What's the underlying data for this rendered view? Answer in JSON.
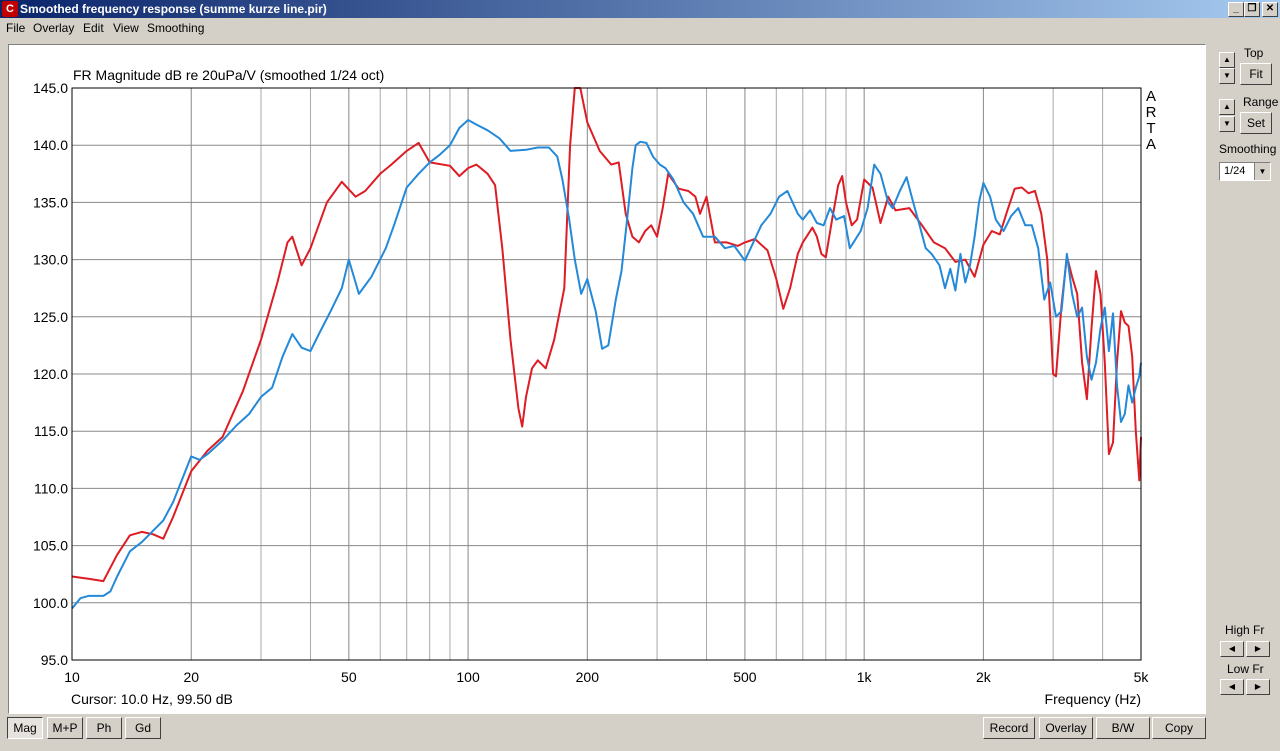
{
  "window": {
    "title": "Smoothed frequency response (summe kurze line.pir)",
    "icon": "C"
  },
  "menu": [
    "File",
    "Overlay",
    "Edit",
    "View",
    "Smoothing"
  ],
  "right_panel": {
    "top_label": "Top",
    "fit_label": "Fit",
    "range_label": "Range",
    "set_label": "Set",
    "smoothing_label": "Smoothing",
    "smoothing_value": "1/24",
    "high_fr_label": "High Fr",
    "low_fr_label": "Low Fr"
  },
  "bottom_left_buttons": [
    "Mag",
    "M+P",
    "Ph",
    "Gd"
  ],
  "bottom_right_buttons": [
    "Record",
    "Overlay",
    "B/W",
    "Copy"
  ],
  "chart_data": {
    "type": "line",
    "title": "FR Magnitude dB re 20uPa/V (smoothed 1/24 oct)",
    "xlabel": "Frequency (Hz)",
    "ylabel": "",
    "xscale": "log",
    "xlim": [
      10,
      5000
    ],
    "ylim": [
      95,
      145
    ],
    "x_ticks": [
      10,
      20,
      50,
      100,
      200,
      500,
      1000,
      2000,
      5000
    ],
    "x_tick_labels": [
      "10",
      "20",
      "50",
      "100",
      "200",
      "500",
      "1k",
      "2k",
      "5k"
    ],
    "y_ticks": [
      95,
      100,
      105,
      110,
      115,
      120,
      125,
      130,
      135,
      140,
      145
    ],
    "y_tick_labels": [
      "95.0",
      "100.0",
      "105.0",
      "110.0",
      "115.0",
      "120.0",
      "125.0",
      "130.0",
      "135.0",
      "140.0",
      "145.0"
    ],
    "grid": true,
    "watermark": "ARTA",
    "cursor_text": "Cursor: 10.0 Hz, 99.50 dB",
    "series": [
      {
        "color": "#dd1c24",
        "points": [
          [
            10,
            102.3
          ],
          [
            11,
            102.1
          ],
          [
            12,
            101.9
          ],
          [
            13,
            104.2
          ],
          [
            14,
            105.9
          ],
          [
            15,
            106.2
          ],
          [
            16,
            106.0
          ],
          [
            17,
            105.6
          ],
          [
            18,
            107.5
          ],
          [
            20,
            111.5
          ],
          [
            22,
            113.3
          ],
          [
            24,
            114.5
          ],
          [
            27,
            118.5
          ],
          [
            30,
            123
          ],
          [
            33,
            128
          ],
          [
            35,
            131.5
          ],
          [
            36,
            132
          ],
          [
            38,
            129.5
          ],
          [
            40,
            131
          ],
          [
            44,
            135
          ],
          [
            48,
            136.8
          ],
          [
            52,
            135.5
          ],
          [
            55,
            136
          ],
          [
            60,
            137.5
          ],
          [
            64,
            138.3
          ],
          [
            70,
            139.5
          ],
          [
            75,
            140.2
          ],
          [
            80,
            138.5
          ],
          [
            90,
            138.2
          ],
          [
            95,
            137.3
          ],
          [
            100,
            138
          ],
          [
            105,
            138.3
          ],
          [
            112,
            137.5
          ],
          [
            117,
            136.5
          ],
          [
            122,
            131
          ],
          [
            128,
            123
          ],
          [
            134,
            117
          ],
          [
            137,
            115.4
          ],
          [
            140,
            118
          ],
          [
            145,
            120.5
          ],
          [
            150,
            121.2
          ],
          [
            157,
            120.5
          ],
          [
            165,
            123
          ],
          [
            175,
            127.5
          ],
          [
            181,
            140
          ],
          [
            186,
            145
          ],
          [
            192,
            145
          ],
          [
            200,
            142
          ],
          [
            215,
            139.5
          ],
          [
            230,
            138.3
          ],
          [
            240,
            138.5
          ],
          [
            250,
            134
          ],
          [
            260,
            132
          ],
          [
            270,
            131.5
          ],
          [
            280,
            132.5
          ],
          [
            290,
            133
          ],
          [
            300,
            132
          ],
          [
            310,
            134.5
          ],
          [
            320,
            137.5
          ],
          [
            340,
            136.2
          ],
          [
            360,
            136
          ],
          [
            375,
            135.5
          ],
          [
            385,
            134
          ],
          [
            400,
            135.5
          ],
          [
            420,
            131.5
          ],
          [
            450,
            131.5
          ],
          [
            480,
            131.2
          ],
          [
            500,
            131.5
          ],
          [
            530,
            131.8
          ],
          [
            570,
            130.8
          ],
          [
            600,
            128.3
          ],
          [
            625,
            125.7
          ],
          [
            650,
            127.5
          ],
          [
            680,
            130.5
          ],
          [
            700,
            131.5
          ],
          [
            740,
            132.8
          ],
          [
            760,
            132
          ],
          [
            780,
            130.5
          ],
          [
            800,
            130.2
          ],
          [
            830,
            133.5
          ],
          [
            860,
            136.5
          ],
          [
            880,
            137.3
          ],
          [
            900,
            135
          ],
          [
            930,
            133
          ],
          [
            960,
            133.5
          ],
          [
            1000,
            137
          ],
          [
            1050,
            136.3
          ],
          [
            1100,
            133.2
          ],
          [
            1150,
            135.5
          ],
          [
            1200,
            134.3
          ],
          [
            1300,
            134.5
          ],
          [
            1400,
            133
          ],
          [
            1500,
            131.5
          ],
          [
            1600,
            131
          ],
          [
            1700,
            129.8
          ],
          [
            1800,
            130
          ],
          [
            1900,
            128.5
          ],
          [
            2000,
            131.3
          ],
          [
            2100,
            132.5
          ],
          [
            2200,
            132.2
          ],
          [
            2300,
            134.3
          ],
          [
            2400,
            136.2
          ],
          [
            2500,
            136.3
          ],
          [
            2600,
            135.8
          ],
          [
            2700,
            136
          ],
          [
            2800,
            134
          ],
          [
            2900,
            130
          ],
          [
            3000,
            120
          ],
          [
            3050,
            119.8
          ],
          [
            3150,
            126
          ],
          [
            3250,
            130.3
          ],
          [
            3350,
            128.5
          ],
          [
            3450,
            127
          ],
          [
            3550,
            121
          ],
          [
            3650,
            117.8
          ],
          [
            3750,
            124
          ],
          [
            3850,
            129
          ],
          [
            3950,
            127
          ],
          [
            4050,
            121
          ],
          [
            4150,
            113
          ],
          [
            4250,
            114
          ],
          [
            4350,
            121
          ],
          [
            4450,
            125.5
          ],
          [
            4550,
            124.5
          ],
          [
            4650,
            124.2
          ],
          [
            4750,
            121.5
          ],
          [
            4850,
            115
          ],
          [
            4950,
            110.7
          ],
          [
            5000,
            114.5
          ]
        ]
      },
      {
        "color": "#2389d8",
        "points": [
          [
            10,
            99.5
          ],
          [
            10.5,
            100.4
          ],
          [
            11,
            100.6
          ],
          [
            12,
            100.6
          ],
          [
            12.5,
            101
          ],
          [
            13,
            102.3
          ],
          [
            14,
            104.5
          ],
          [
            15,
            105.3
          ],
          [
            17,
            107.2
          ],
          [
            18,
            108.8
          ],
          [
            20,
            112.8
          ],
          [
            21,
            112.5
          ],
          [
            22,
            113
          ],
          [
            24,
            114.2
          ],
          [
            26,
            115.5
          ],
          [
            28,
            116.5
          ],
          [
            30,
            118
          ],
          [
            32,
            118.8
          ],
          [
            34,
            121.5
          ],
          [
            36,
            123.5
          ],
          [
            38,
            122.3
          ],
          [
            40,
            122
          ],
          [
            42,
            123.5
          ],
          [
            45,
            125.5
          ],
          [
            48,
            127.5
          ],
          [
            50,
            130
          ],
          [
            53,
            127
          ],
          [
            57,
            128.5
          ],
          [
            62,
            131
          ],
          [
            65,
            133
          ],
          [
            70,
            136.3
          ],
          [
            75,
            137.5
          ],
          [
            80,
            138.5
          ],
          [
            85,
            139.2
          ],
          [
            90,
            140
          ],
          [
            95,
            141.5
          ],
          [
            100,
            142.2
          ],
          [
            105,
            141.8
          ],
          [
            112,
            141.3
          ],
          [
            120,
            140.6
          ],
          [
            128,
            139.5
          ],
          [
            140,
            139.6
          ],
          [
            150,
            139.8
          ],
          [
            160,
            139.8
          ],
          [
            168,
            139
          ],
          [
            173,
            137
          ],
          [
            180,
            133.5
          ],
          [
            186,
            130
          ],
          [
            193,
            127
          ],
          [
            200,
            128.3
          ],
          [
            210,
            125.5
          ],
          [
            218,
            122.2
          ],
          [
            226,
            122.5
          ],
          [
            236,
            126.5
          ],
          [
            244,
            129
          ],
          [
            252,
            133.5
          ],
          [
            260,
            138
          ],
          [
            265,
            140
          ],
          [
            272,
            140.3
          ],
          [
            282,
            140.2
          ],
          [
            293,
            139
          ],
          [
            305,
            138.3
          ],
          [
            315,
            138
          ],
          [
            330,
            137
          ],
          [
            350,
            135
          ],
          [
            370,
            134
          ],
          [
            392,
            132
          ],
          [
            420,
            132
          ],
          [
            445,
            131
          ],
          [
            470,
            131.2
          ],
          [
            500,
            129.9
          ],
          [
            520,
            131.2
          ],
          [
            550,
            133
          ],
          [
            580,
            134
          ],
          [
            610,
            135.5
          ],
          [
            640,
            136
          ],
          [
            680,
            134
          ],
          [
            700,
            133.5
          ],
          [
            730,
            134.3
          ],
          [
            760,
            133.2
          ],
          [
            790,
            133
          ],
          [
            820,
            134.5
          ],
          [
            850,
            133.5
          ],
          [
            890,
            133.8
          ],
          [
            920,
            131
          ],
          [
            940,
            131.5
          ],
          [
            980,
            132.5
          ],
          [
            1020,
            134.5
          ],
          [
            1060,
            138.3
          ],
          [
            1100,
            137.5
          ],
          [
            1150,
            135
          ],
          [
            1180,
            134.5
          ],
          [
            1230,
            136
          ],
          [
            1280,
            137.2
          ],
          [
            1330,
            135
          ],
          [
            1380,
            133
          ],
          [
            1430,
            131
          ],
          [
            1480,
            130.5
          ],
          [
            1550,
            129.5
          ],
          [
            1600,
            127.5
          ],
          [
            1650,
            129.2
          ],
          [
            1700,
            127.3
          ],
          [
            1750,
            130.5
          ],
          [
            1800,
            128
          ],
          [
            1850,
            129.5
          ],
          [
            1900,
            132
          ],
          [
            1950,
            135
          ],
          [
            2000,
            136.7
          ],
          [
            2080,
            135.5
          ],
          [
            2150,
            133.5
          ],
          [
            2250,
            132.5
          ],
          [
            2350,
            133.8
          ],
          [
            2450,
            134.5
          ],
          [
            2550,
            133
          ],
          [
            2650,
            133
          ],
          [
            2750,
            131
          ],
          [
            2850,
            126.5
          ],
          [
            2950,
            128
          ],
          [
            3050,
            125
          ],
          [
            3150,
            125.5
          ],
          [
            3250,
            130.5
          ],
          [
            3350,
            127
          ],
          [
            3450,
            125
          ],
          [
            3550,
            125.8
          ],
          [
            3650,
            121.5
          ],
          [
            3750,
            119.5
          ],
          [
            3850,
            121
          ],
          [
            3950,
            124
          ],
          [
            4050,
            125.8
          ],
          [
            4150,
            122
          ],
          [
            4250,
            125.3
          ],
          [
            4350,
            119
          ],
          [
            4450,
            115.8
          ],
          [
            4550,
            116.5
          ],
          [
            4650,
            119
          ],
          [
            4750,
            117.5
          ],
          [
            4850,
            118.8
          ],
          [
            4950,
            119.8
          ],
          [
            5000,
            121
          ]
        ]
      }
    ]
  }
}
